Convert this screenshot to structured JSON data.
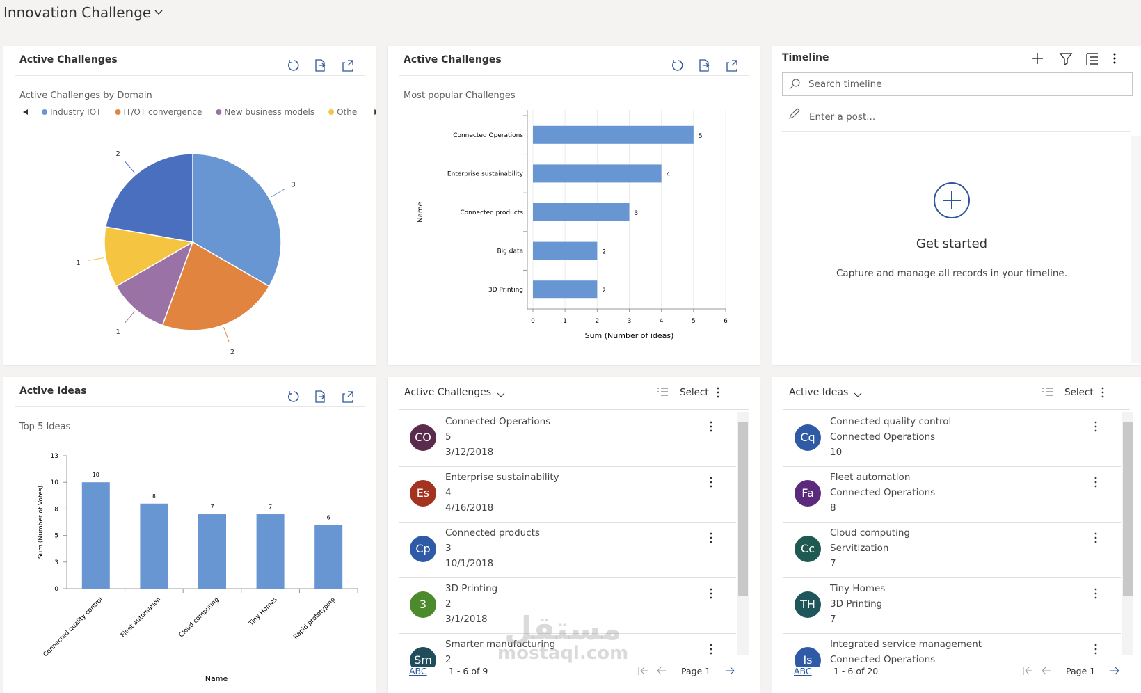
{
  "header": {
    "title": "Innovation Challenge"
  },
  "domain_panel": {
    "title": "Active Challenges",
    "chart": {
      "type": "pie",
      "title": "Active Challenges by Domain",
      "categories": [
        "Industry IOT",
        "IT/OT convergence",
        "New business models",
        "Othe",
        null
      ],
      "values": [
        3,
        2,
        1,
        1,
        2
      ],
      "colors": [
        "#6896d2",
        "#e0843f",
        "#9a72a6",
        "#f5c542",
        "#4a6fbe"
      ]
    }
  },
  "popular_panel": {
    "title": "Active Challenges",
    "chart": {
      "type": "hbar",
      "title": "Most popular Challenges",
      "categories": [
        "Connected Operations",
        "Enterprise sustainability",
        "Connected products",
        "Big data",
        "3D Printing"
      ],
      "values": [
        5,
        4,
        3,
        2,
        2
      ],
      "color": "#6896d2",
      "xlim": [
        0,
        6
      ],
      "xticks": [
        0,
        1,
        2,
        3,
        4,
        5,
        6
      ],
      "grid": true,
      "x_label": "Sum (Number of ideas)",
      "y_label": "Name"
    }
  },
  "timeline": {
    "title": "Timeline",
    "search_placeholder": "Search timeline",
    "post_placeholder": "Enter a post...",
    "empty_title": "Get started",
    "empty_text": "Capture and manage all records in your timeline."
  },
  "ideas_chart_panel": {
    "title": "Active Ideas",
    "chart": {
      "type": "bar",
      "title": "Top 5 Ideas",
      "categories": [
        "Connected quality control",
        "Fleet automation",
        "Cloud computing",
        "Tiny Homes",
        "Rapid prototyping"
      ],
      "values": [
        10,
        8,
        7,
        7,
        6
      ],
      "color": "#6896d2",
      "ylim": [
        0,
        12.5
      ],
      "yticks": [
        0,
        {
          "value": 2.5,
          "label": "3"
        },
        5,
        {
          "value": 7.5,
          "label": "8"
        },
        10,
        {
          "value": 12.5,
          "label": "13"
        }
      ],
      "x_label": "Name",
      "y_label": "Sum (Number of Votes)"
    }
  },
  "challenges_list": {
    "title": "Active Challenges",
    "select": "Select",
    "items": [
      {
        "initials": "CO",
        "color": "#5a2b4c",
        "lines": [
          "Connected Operations",
          "5",
          "3/12/2018"
        ]
      },
      {
        "initials": "Es",
        "color": "#a3321f",
        "lines": [
          "Enterprise sustainability",
          "4",
          "4/16/2018"
        ]
      },
      {
        "initials": "Cp",
        "color": "#2f5aa6",
        "lines": [
          "Connected products",
          "3",
          "10/1/2018"
        ]
      },
      {
        "initials": "3",
        "color": "#4b8a2d",
        "lines": [
          "3D Printing",
          "2",
          "3/1/2018"
        ]
      },
      {
        "initials": "Sm",
        "color": "#1f4d5c",
        "lines": [
          "Smarter manufacturing",
          "2"
        ]
      }
    ],
    "footer": {
      "abc": "ABC",
      "range": "1 - 6 of 9",
      "page": "Page 1"
    }
  },
  "ideas_list": {
    "title": "Active Ideas",
    "select": "Select",
    "items": [
      {
        "initials": "Cq",
        "color": "#2f5aa6",
        "lines": [
          "Connected quality control",
          "Connected Operations",
          "10"
        ]
      },
      {
        "initials": "Fa",
        "color": "#5b2a7d",
        "lines": [
          "Fleet automation",
          "Connected Operations",
          "8"
        ]
      },
      {
        "initials": "Cc",
        "color": "#1f5a52",
        "lines": [
          "Cloud computing",
          "Servitization",
          "7"
        ]
      },
      {
        "initials": "TH",
        "color": "#1f565c",
        "lines": [
          "Tiny Homes",
          "3D Printing",
          "7"
        ]
      },
      {
        "initials": "Is",
        "color": "#2f5aa6",
        "lines": [
          "Integrated service management",
          "Connected Operations"
        ]
      }
    ],
    "footer": {
      "abc": "ABC",
      "range": "1 - 6 of 20",
      "page": "Page 1"
    }
  },
  "watermark": {
    "arabic": "مستقل",
    "latin": "mostaql.com"
  }
}
